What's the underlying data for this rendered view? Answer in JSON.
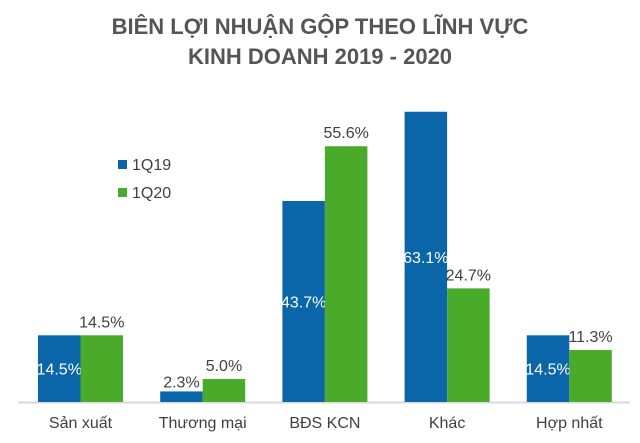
{
  "chart_data": {
    "type": "bar",
    "title": [
      "BIÊN LỢI NHUẬN GỘP THEO LĨNH VỰC",
      "KINH DOANH 2019 - 2020"
    ],
    "categories": [
      "Sản xuất",
      "Thương mại",
      "BĐS KCN",
      "Khác",
      "Hợp nhất"
    ],
    "series": [
      {
        "name": "1Q19",
        "values": [
          14.5,
          2.3,
          43.7,
          63.1,
          14.5
        ],
        "labels": [
          "14.5%",
          "2.3%",
          "43.7%",
          "63.1%",
          "14.5%"
        ],
        "color": "#0a66a8"
      },
      {
        "name": "1Q20",
        "values": [
          14.5,
          5.0,
          55.6,
          24.7,
          11.3
        ],
        "labels": [
          "14.5%",
          "5.0%",
          "55.6%",
          "24.7%",
          "11.3%"
        ],
        "color": "#4aaa2a"
      }
    ],
    "ylim": [
      0,
      65
    ],
    "grid": false,
    "legend": "top-left",
    "xlabel": "",
    "ylabel": ""
  }
}
